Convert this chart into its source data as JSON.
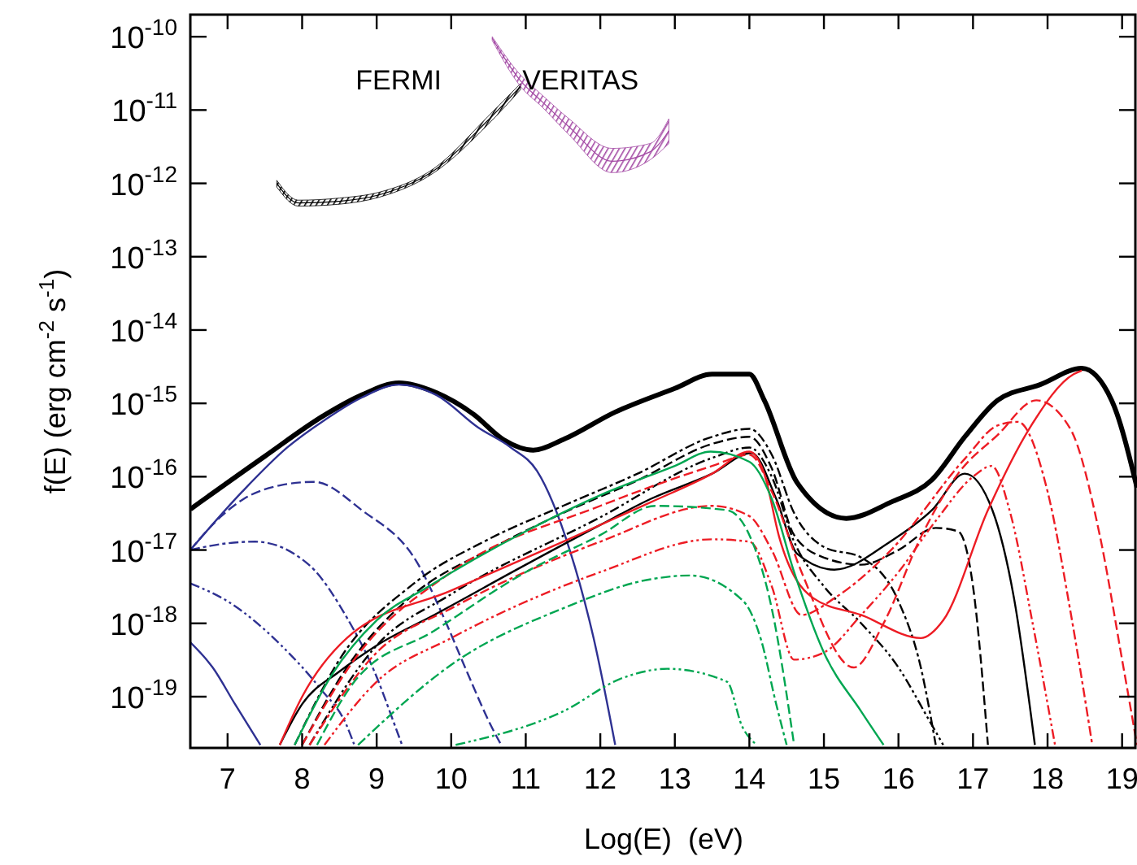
{
  "chart_data": {
    "type": "line",
    "xlabel": "Log(E)  (eV)",
    "ylabel": "f(E) (erg cm$^{-2}$ s$^{-1}$)",
    "log": "y",
    "grid": false,
    "xlim": [
      6.5,
      19.2
    ],
    "xticks": [
      7,
      8,
      9,
      10,
      11,
      12,
      13,
      14,
      15,
      16,
      17,
      18,
      19
    ],
    "ylim": [
      2e-20,
      2e-10
    ],
    "yticks": [
      {
        "value": 1e-19,
        "label": "10$^{-19}$"
      },
      {
        "value": 1e-18,
        "label": "10$^{-18}$"
      },
      {
        "value": 1e-17,
        "label": "10$^{-17}$"
      },
      {
        "value": 1e-16,
        "label": "10$^{-16}$"
      },
      {
        "value": 1e-15,
        "label": "10$^{-15}$"
      },
      {
        "value": 1e-14,
        "label": "10$^{-14}$"
      },
      {
        "value": 1e-13,
        "label": "10$^{-13}$"
      },
      {
        "value": 1e-12,
        "label": "10$^{-12}$"
      },
      {
        "value": 1e-11,
        "label": "10$^{-11}$"
      },
      {
        "value": 1e-10,
        "label": "10$^{-10}$"
      }
    ],
    "series": [
      {
        "color": "#000000",
        "line_style": "solid",
        "x": [
          6.5,
          7.5,
          8.3,
          8.8,
          9.3,
          9.8,
          10.3,
          10.7,
          11.1,
          11.5,
          12.2,
          13.0,
          13.5,
          14.0,
          14.2,
          14.64,
          15.3,
          15.9,
          16.45,
          16.9,
          17.33,
          17.9,
          18.46,
          18.86,
          19.2
        ],
        "values": [
          3.6e-17,
          1.9e-16,
          6.9e-16,
          1.3e-15,
          1.9e-15,
          1.4e-15,
          7.1e-16,
          3.2e-16,
          2.3e-16,
          3.2e-16,
          7.6e-16,
          1.6e-15,
          2.5e-15,
          2.5e-15,
          1.1e-15,
          8.3e-17,
          2.7e-17,
          4.5e-17,
          9.1e-17,
          3.6e-16,
          1.1e-15,
          1.8e-15,
          3e-15,
          1.1e-15,
          7.1e-17
        ]
      },
      {
        "color": "#2e3192",
        "line_style": "solid",
        "x": [
          6.5,
          7.2,
          7.8,
          8.31,
          8.8,
          9.3,
          9.8,
          10.36,
          10.8,
          11.15,
          11.59,
          11.91,
          12.2
        ],
        "values": [
          1e-17,
          6.3e-17,
          2.5e-16,
          6e-16,
          1.2e-15,
          1.8e-15,
          1.3e-15,
          4.7e-16,
          2.5e-16,
          1.2e-16,
          1e-17,
          6.3e-19,
          2.2e-20
        ]
      },
      {
        "color": "#2e3192",
        "line_style": "solid",
        "x": [
          6.5,
          6.8,
          7.1,
          7.44
        ],
        "values": [
          5.5e-19,
          2.5e-19,
          7.9e-20,
          2.2e-20
        ]
      },
      {
        "color": "#2e3192",
        "line_style": "dashed",
        "x": [
          6.5,
          6.9,
          7.22,
          7.7,
          8.16,
          8.8,
          9.56,
          9.9,
          10.21,
          10.54,
          10.67
        ],
        "values": [
          1e-17,
          2.8e-17,
          5e-17,
          7.6e-17,
          8.5e-17,
          3.5e-17,
          6.3e-18,
          1.2e-18,
          2.2e-19,
          3.9e-20,
          2.2e-20
        ]
      },
      {
        "color": "#2e3192",
        "line_style": "dashdot",
        "x": [
          6.5,
          6.9,
          7.37,
          8.09,
          8.6,
          8.97,
          9.25,
          9.34
        ],
        "values": [
          1e-17,
          1.2e-17,
          1.3e-17,
          6.3e-18,
          1.2e-18,
          2.2e-19,
          3.9e-20,
          2.2e-20
        ]
      },
      {
        "color": "#2e3192",
        "line_style": "dashdotdot",
        "x": [
          6.5,
          7.0,
          7.72,
          8.24,
          8.6,
          8.7
        ],
        "values": [
          3.5e-18,
          2e-18,
          5e-19,
          1.3e-19,
          4e-20,
          2.2e-20
        ]
      },
      {
        "color": "#000000",
        "line_style": "solid",
        "x": [
          7.7,
          8.0,
          8.5,
          9.0,
          9.77,
          11.0,
          12.0,
          12.68,
          13.5,
          14.03,
          14.36,
          14.64,
          15.14,
          15.89,
          16.45,
          16.89,
          17.26,
          17.55,
          17.83
        ],
        "values": [
          2.2e-20,
          7.9e-20,
          2.2e-19,
          5e-19,
          1.3e-18,
          6.3e-18,
          2.2e-17,
          5e-17,
          1.1e-16,
          2.1e-16,
          5e-17,
          8.9e-18,
          5.4e-18,
          1.3e-17,
          3.5e-17,
          1.1e-16,
          3.5e-17,
          2.2e-18,
          2.2e-20
        ]
      },
      {
        "color": "#000000",
        "line_style": "dashdot",
        "x": [
          7.9,
          8.5,
          9.5,
          10.5,
          11.5,
          12.5,
          13.5,
          14.0,
          14.3,
          14.6,
          15.0,
          15.5,
          16.0,
          16.3,
          16.5
        ],
        "values": [
          2.2e-20,
          3.2e-19,
          3.5e-18,
          1.4e-17,
          4e-17,
          1.1e-16,
          3.5e-16,
          4.5e-16,
          2e-16,
          3.2e-17,
          1.1e-17,
          7.9e-18,
          2e-18,
          2.5e-19,
          2.2e-20
        ]
      },
      {
        "color": "#000000",
        "line_style": "dashed",
        "x": [
          8.0,
          8.6,
          9.5,
          10.5,
          11.5,
          12.5,
          13.5,
          14.0,
          14.3,
          14.6,
          15.0,
          15.5,
          16.0,
          16.5,
          16.8,
          17.0,
          17.2
        ],
        "values": [
          2.2e-20,
          2.5e-19,
          2.5e-18,
          1e-17,
          3.2e-17,
          8.9e-17,
          2.8e-16,
          3.5e-16,
          1.3e-16,
          1.6e-17,
          7.9e-18,
          6.3e-18,
          1e-17,
          2e-17,
          1.8e-17,
          3.2e-18,
          2.2e-20
        ]
      },
      {
        "color": "#000000",
        "line_style": "dashdotdot",
        "x": [
          8.1,
          9.0,
          10.0,
          12.0,
          13.5,
          14.0,
          14.3,
          14.6,
          15.0,
          15.5,
          16.0,
          16.4,
          16.6
        ],
        "values": [
          2.2e-20,
          5e-19,
          2.5e-18,
          2.8e-17,
          1.8e-16,
          2.5e-16,
          1e-16,
          1.3e-17,
          3.2e-18,
          1e-18,
          2.5e-19,
          5e-20,
          2.2e-20
        ]
      },
      {
        "color": "#ed1c24",
        "line_style": "solid",
        "x": [
          7.7,
          8.0,
          8.6,
          10.0,
          11.5,
          12.68,
          13.5,
          14.0,
          14.2,
          14.4,
          14.86,
          15.5,
          16.3,
          16.6,
          17.2,
          17.76,
          18.35,
          18.46
        ],
        "values": [
          2.2e-20,
          1e-19,
          6.3e-19,
          2.8e-18,
          1.3e-17,
          4.5e-17,
          1.1e-16,
          2.2e-16,
          1.1e-16,
          1.5e-17,
          2.2e-18,
          1.3e-18,
          6.3e-19,
          1.1e-18,
          3.5e-17,
          4.6e-16,
          2.5e-15,
          2.8e-15
        ]
      },
      {
        "color": "#ed1c24",
        "line_style": "dashed",
        "x": [
          8.0,
          8.7,
          10.0,
          12.0,
          13.5,
          14.0,
          14.3,
          14.7,
          15.4,
          15.8,
          16.3,
          16.8,
          17.33,
          17.85,
          18.3,
          18.7,
          19.0,
          19.2
        ],
        "values": [
          2.2e-20,
          3.2e-19,
          5e-18,
          4e-17,
          1.4e-16,
          2e-16,
          6.3e-17,
          5e-18,
          2.5e-19,
          1e-18,
          1.5e-17,
          1.1e-16,
          3.7e-16,
          1.1e-15,
          4.6e-16,
          1.6e-17,
          3.2e-19,
          2.2e-20
        ]
      },
      {
        "color": "#ed1c24",
        "line_style": "dashdot",
        "x": [
          8.1,
          9.0,
          10.0,
          12.0,
          13.5,
          14.0,
          14.3,
          14.7,
          15.14,
          15.9,
          16.9,
          17.33,
          17.6,
          18.0,
          18.3,
          18.6
        ],
        "values": [
          2.2e-20,
          4e-19,
          1.6e-18,
          1.3e-17,
          4e-17,
          2.9e-17,
          1e-17,
          1.3e-18,
          2.2e-18,
          1e-17,
          1.8e-16,
          5e-16,
          5.6e-16,
          6.3e-17,
          1.6e-18,
          2.2e-20
        ]
      },
      {
        "color": "#ed1c24",
        "line_style": "dashdotdot",
        "x": [
          8.3,
          9.0,
          10.0,
          12.0,
          13.5,
          14.0,
          14.3,
          14.6,
          15.0,
          15.5,
          16.0,
          16.5,
          17.0,
          17.25,
          17.5,
          17.8,
          18.1
        ],
        "values": [
          2.2e-20,
          1.6e-19,
          6.3e-19,
          5e-18,
          1.4e-17,
          1.3e-17,
          3.2e-18,
          3.2e-19,
          4e-19,
          1.3e-18,
          5e-18,
          2.5e-17,
          1e-16,
          1.4e-16,
          3.2e-17,
          1e-18,
          2.2e-20
        ]
      },
      {
        "color": "#00a651",
        "line_style": "solid",
        "x": [
          7.9,
          8.4,
          9.0,
          9.7,
          11.0,
          12.0,
          13.0,
          13.48,
          14.0,
          14.3,
          14.6,
          15.0,
          15.5,
          15.8
        ],
        "values": [
          2.2e-20,
          2e-19,
          1.1e-18,
          3.2e-18,
          1.8e-17,
          5.6e-17,
          1.4e-16,
          2.2e-16,
          1.6e-16,
          5e-17,
          5e-18,
          4e-19,
          6.3e-20,
          2.2e-20
        ]
      },
      {
        "color": "#00a651",
        "line_style": "dashed",
        "x": [
          8.2,
          8.7,
          9.77,
          11.0,
          12.0,
          12.74,
          13.7,
          14.0,
          14.3,
          14.6
        ],
        "values": [
          2.2e-20,
          1.6e-19,
          7.9e-19,
          5e-18,
          1.6e-17,
          4e-17,
          3.5e-17,
          1.6e-17,
          1.6e-18,
          2.2e-20
        ]
      },
      {
        "color": "#00a651",
        "line_style": "dashdot",
        "x": [
          8.75,
          10.06,
          11.5,
          12.68,
          13.2,
          13.92,
          14.15,
          14.36,
          14.5
        ],
        "values": [
          2.2e-20,
          3e-19,
          1.6e-18,
          4e-18,
          4.5e-18,
          2e-18,
          6.3e-19,
          7.9e-20,
          2.2e-20
        ]
      },
      {
        "color": "#00a651",
        "line_style": "dashdotdot",
        "x": [
          10.06,
          11.5,
          12.3,
          12.9,
          13.7,
          13.9,
          14.1
        ],
        "values": [
          2.2e-20,
          6.3e-20,
          1.8e-19,
          2.4e-19,
          1.6e-19,
          4e-20,
          2.2e-20
        ]
      },
      {
        "name": "FERMI",
        "color": "#000000",
        "line_style": "solid",
        "x": [
          7.66,
          7.95,
          8.5,
          9.04,
          9.77,
          10.49,
          10.93
        ],
        "values": [
          1e-12,
          5.4e-13,
          5.7e-13,
          7e-13,
          1.5e-12,
          7.2e-12,
          2.1e-11
        ],
        "lower": [
          8.9e-13,
          4.9e-13,
          5.2e-13,
          6.5e-13,
          1.4e-12,
          6.3e-12,
          1.9e-11
        ],
        "upper": [
          1.1e-12,
          5.9e-13,
          6.3e-13,
          7.6e-13,
          1.6e-12,
          8.1e-12,
          2.3e-11
        ]
      },
      {
        "name": "VERITAS",
        "color": "#a349a4",
        "line_style": "solid",
        "x": [
          10.55,
          10.93,
          11.22,
          11.58,
          12.16,
          12.67,
          12.92
        ],
        "values": [
          9.5e-11,
          2.5e-11,
          1.3e-11,
          5.9e-12,
          2e-12,
          2.7e-12,
          5.2e-12
        ],
        "lower": [
          8.9e-11,
          2.1e-11,
          1.1e-11,
          4.6e-12,
          1.4e-12,
          2.1e-12,
          3.5e-12
        ],
        "upper": [
          1e-10,
          3e-11,
          1.6e-11,
          7.6e-12,
          3e-12,
          3.5e-12,
          7.6e-12
        ]
      }
    ]
  }
}
